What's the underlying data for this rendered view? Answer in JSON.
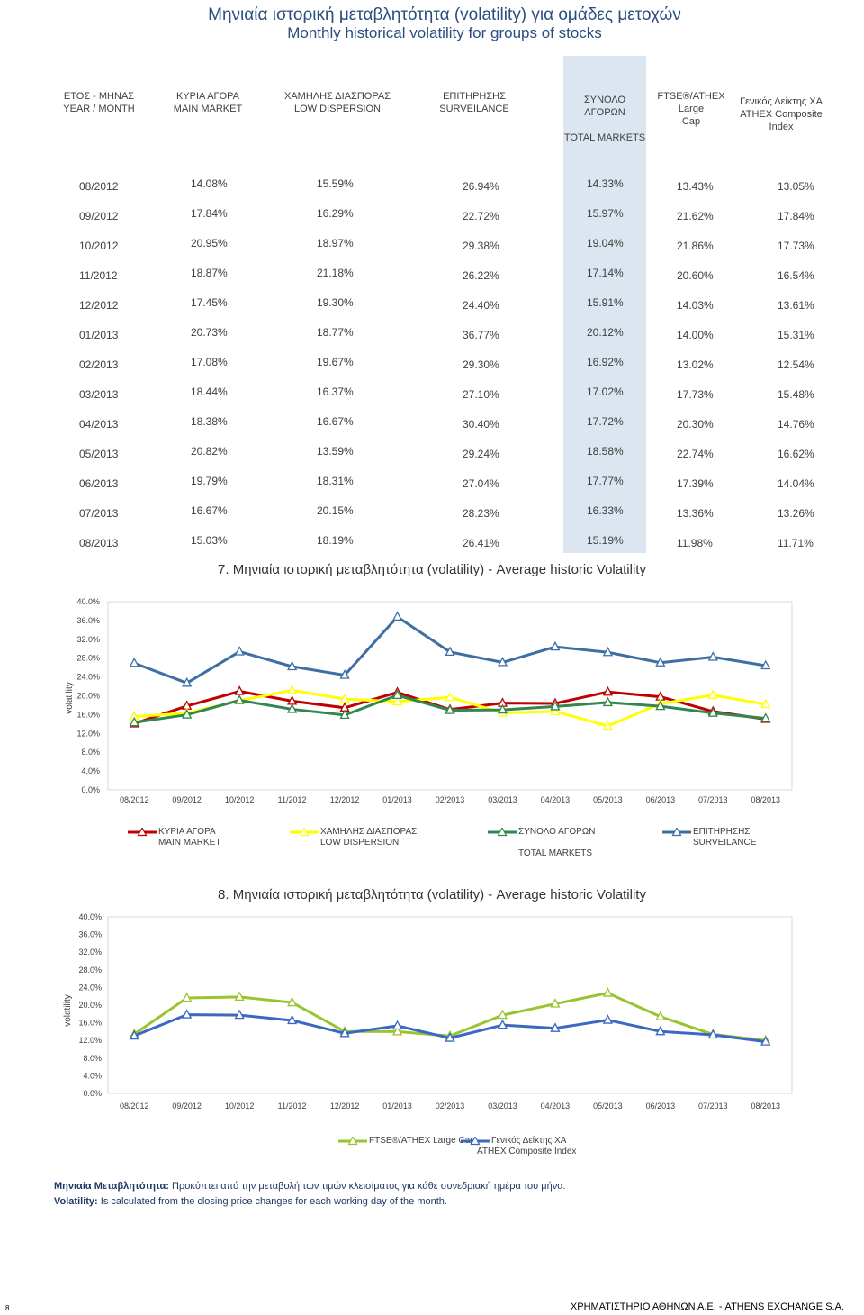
{
  "title_gr": "Μηνιαία ιστορική μεταβλητότητα (volatility) για ομάδες μετοχών",
  "title_en": "Monthly historical volatility for groups of stocks",
  "table": {
    "headers": [
      [
        "ΕΤΟΣ - ΜΗΝΑΣ",
        "YEAR / MONTH"
      ],
      [
        "ΚΥΡΙΑ ΑΓΟΡΑ",
        "MAIN MARKET"
      ],
      [
        "ΧΑΜΗΛΗΣ ΔΙΑΣΠΟΡΑΣ",
        "LOW DISPERSION"
      ],
      [
        "ΕΠΙΤΗΡΗΣΗΣ",
        "SURVEILANCE"
      ],
      [
        "ΣΥΝΟΛΟ ΑΓΟΡΩΝ",
        "TOTAL MARKETS"
      ],
      [
        "FTSE®/ATHEX Large",
        "Cap"
      ],
      [
        "Γενικός Δείκτης ΧΑ",
        "ATHEX Composite",
        "Index"
      ]
    ],
    "rows": [
      [
        "08/2012",
        "14.08%",
        "15.59%",
        "26.94%",
        "14.33%",
        "13.43%",
        "13.05%"
      ],
      [
        "09/2012",
        "17.84%",
        "16.29%",
        "22.72%",
        "15.97%",
        "21.62%",
        "17.84%"
      ],
      [
        "10/2012",
        "20.95%",
        "18.97%",
        "29.38%",
        "19.04%",
        "21.86%",
        "17.73%"
      ],
      [
        "11/2012",
        "18.87%",
        "21.18%",
        "26.22%",
        "17.14%",
        "20.60%",
        "16.54%"
      ],
      [
        "12/2012",
        "17.45%",
        "19.30%",
        "24.40%",
        "15.91%",
        "14.03%",
        "13.61%"
      ],
      [
        "01/2013",
        "20.73%",
        "18.77%",
        "36.77%",
        "20.12%",
        "14.00%",
        "15.31%"
      ],
      [
        "02/2013",
        "17.08%",
        "19.67%",
        "29.30%",
        "16.92%",
        "13.02%",
        "12.54%"
      ],
      [
        "03/2013",
        "18.44%",
        "16.37%",
        "27.10%",
        "17.02%",
        "17.73%",
        "15.48%"
      ],
      [
        "04/2013",
        "18.38%",
        "16.67%",
        "30.40%",
        "17.72%",
        "20.30%",
        "14.76%"
      ],
      [
        "05/2013",
        "20.82%",
        "13.59%",
        "29.24%",
        "18.58%",
        "22.74%",
        "16.62%"
      ],
      [
        "06/2013",
        "19.79%",
        "18.31%",
        "27.04%",
        "17.77%",
        "17.39%",
        "14.04%"
      ],
      [
        "07/2013",
        "16.67%",
        "20.15%",
        "28.23%",
        "16.33%",
        "13.36%",
        "13.26%"
      ],
      [
        "08/2013",
        "15.03%",
        "18.19%",
        "26.41%",
        "15.19%",
        "11.98%",
        "11.71%"
      ]
    ]
  },
  "chart_data": [
    {
      "type": "line",
      "title": "7. Μηνιαία ιστορική μεταβλητότητα (volatility) - Average historic Volatility",
      "ylabel": "volatility",
      "ylim": [
        0,
        40
      ],
      "yticks": [
        "0.0%",
        "4.0%",
        "8.0%",
        "12.0%",
        "16.0%",
        "20.0%",
        "24.0%",
        "28.0%",
        "32.0%",
        "36.0%",
        "40.0%"
      ],
      "categories": [
        "08/2012",
        "09/2012",
        "10/2012",
        "11/2012",
        "12/2012",
        "01/2013",
        "02/2013",
        "03/2013",
        "04/2013",
        "05/2013",
        "06/2013",
        "07/2013",
        "08/2013"
      ],
      "series": [
        {
          "name": "ΚΥΡΙΑ ΑΓΟΡΑ",
          "name2": "MAIN MARKET",
          "color": "#c00000",
          "values": [
            14.08,
            17.84,
            20.95,
            18.87,
            17.45,
            20.73,
            17.08,
            18.44,
            18.38,
            20.82,
            19.79,
            16.67,
            15.03
          ]
        },
        {
          "name": "ΧΑΜΗΛΗΣ ΔΙΑΣΠΟΡΑΣ",
          "name2": "LOW DISPERSION",
          "color": "#ffff00",
          "values": [
            15.59,
            16.29,
            18.97,
            21.18,
            19.3,
            18.77,
            19.67,
            16.37,
            16.67,
            13.59,
            18.31,
            20.15,
            18.19
          ]
        },
        {
          "name": "ΣΥΝΟΛΟ ΑΓΟΡΩΝ",
          "name2": "TOTAL MARKETS",
          "color": "#31874f",
          "values": [
            14.33,
            15.97,
            19.04,
            17.14,
            15.91,
            20.12,
            16.92,
            17.02,
            17.72,
            18.58,
            17.77,
            16.33,
            15.19
          ]
        },
        {
          "name": "ΕΠΙΤΗΡΗΣΗΣ",
          "name2": "SURVEILANCE",
          "color": "#3d6fa3",
          "values": [
            26.94,
            22.72,
            29.38,
            26.22,
            24.4,
            36.77,
            29.3,
            27.1,
            30.4,
            29.24,
            27.04,
            28.23,
            26.41
          ]
        }
      ]
    },
    {
      "type": "line",
      "title": "8. Μηνιαία ιστορική μεταβλητότητα (volatility) - Average historic Volatility",
      "ylabel": "volatility",
      "ylim": [
        0,
        40
      ],
      "yticks": [
        "0.0%",
        "4.0%",
        "8.0%",
        "12.0%",
        "16.0%",
        "20.0%",
        "24.0%",
        "28.0%",
        "32.0%",
        "36.0%",
        "40.0%"
      ],
      "categories": [
        "08/2012",
        "09/2012",
        "10/2012",
        "11/2012",
        "12/2012",
        "01/2013",
        "02/2013",
        "03/2013",
        "04/2013",
        "05/2013",
        "06/2013",
        "07/2013",
        "08/2013"
      ],
      "series": [
        {
          "name": "FTSE®/ATHEX Large Cap",
          "name2": "",
          "color": "#9ac42f",
          "values": [
            13.43,
            21.62,
            21.86,
            20.6,
            14.03,
            14.0,
            13.02,
            17.73,
            20.3,
            22.74,
            17.39,
            13.36,
            11.98
          ]
        },
        {
          "name": "Γενικός Δείκτης ΧΑ",
          "name2": "ATHEX Composite Index",
          "color": "#3b68c4",
          "values": [
            13.05,
            17.84,
            17.73,
            16.54,
            13.61,
            15.31,
            12.54,
            15.48,
            14.76,
            16.62,
            14.04,
            13.26,
            11.71
          ]
        }
      ]
    }
  ],
  "notes": {
    "gr_label": "Μηνιαία Μεταβλητότητα:",
    "gr_text": " Προκύπτει από την μεταβολή των τιμών κλεισίματος για κάθε συνεδριακή ημέρα του μήνα.",
    "en_label": "Volatility:",
    "en_text": " Is calculated from the closing price changes for each working day of the month."
  },
  "footer": "ΧΡΗΜΑΤΙΣΤΗΡΙΟ ΑΘΗΝΩΝ Α.Ε. - ATHENS EXCHANGE S.A.",
  "page_number": "8"
}
